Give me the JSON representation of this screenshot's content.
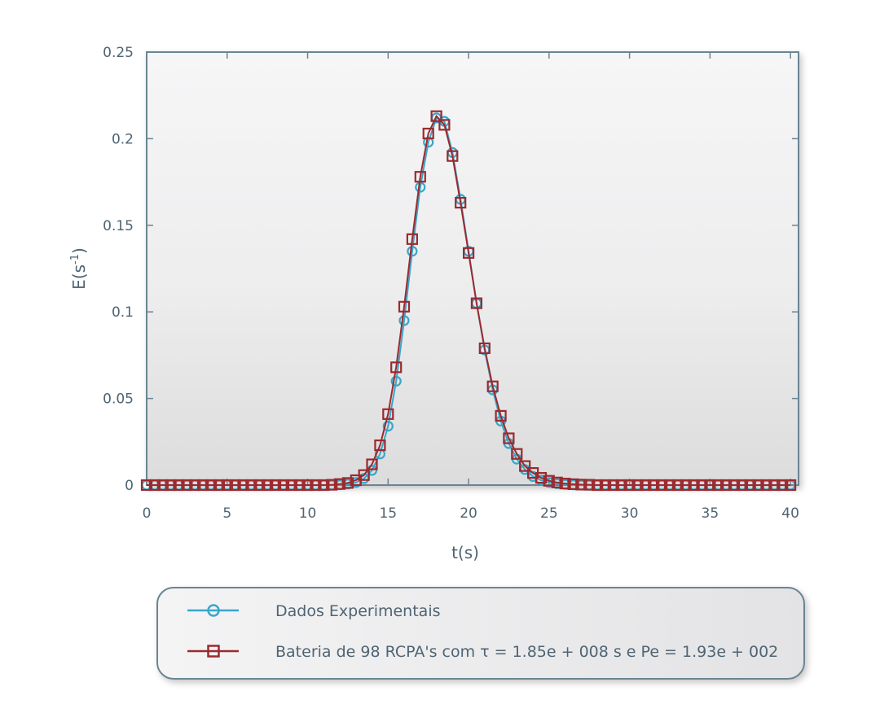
{
  "chart_data": {
    "type": "line",
    "xlabel": "t(s)",
    "ylabel_base": "E(s",
    "ylabel_sup": "-1",
    "ylabel_close": ")",
    "xlim": [
      0,
      40.5
    ],
    "ylim": [
      0,
      0.25
    ],
    "xticks": [
      0,
      5,
      10,
      15,
      20,
      25,
      30,
      35,
      40
    ],
    "yticks": [
      0,
      0.05,
      0.1,
      0.15,
      0.2,
      0.25
    ],
    "ytick_labels": [
      "0",
      "0.05",
      "0.1",
      "0.15",
      "0.2",
      "0.25"
    ],
    "grid": false,
    "legend_position": "bottom",
    "x": [
      0,
      0.5,
      1,
      1.5,
      2,
      2.5,
      3,
      3.5,
      4,
      4.5,
      5,
      5.5,
      6,
      6.5,
      7,
      7.5,
      8,
      8.5,
      9,
      9.5,
      10,
      10.5,
      11,
      11.5,
      12,
      12.5,
      13,
      13.5,
      14,
      14.5,
      15,
      15.5,
      16,
      16.5,
      17,
      17.5,
      18,
      18.5,
      19,
      19.5,
      20,
      20.5,
      21,
      21.5,
      22,
      22.5,
      23,
      23.5,
      24,
      24.5,
      25,
      25.5,
      26,
      26.5,
      27,
      27.5,
      28,
      28.5,
      29,
      29.5,
      30,
      30.5,
      31,
      31.5,
      32,
      32.5,
      33,
      33.5,
      34,
      34.5,
      35,
      35.5,
      36,
      36.5,
      37,
      37.5,
      38,
      38.5,
      39,
      39.5,
      40
    ],
    "series": [
      {
        "name": "Dados Experimentais",
        "color": "#3aa6c9",
        "marker": "circle",
        "values": [
          0,
          0,
          0,
          0,
          0,
          0,
          0,
          0,
          0,
          0,
          0,
          0,
          0,
          0,
          0,
          0,
          0,
          0,
          0,
          0,
          0,
          0,
          0,
          0,
          0.0002,
          0.0006,
          0.0015,
          0.0038,
          0.0085,
          0.018,
          0.034,
          0.06,
          0.095,
          0.135,
          0.172,
          0.198,
          0.212,
          0.21,
          0.192,
          0.165,
          0.135,
          0.105,
          0.078,
          0.055,
          0.037,
          0.024,
          0.015,
          0.009,
          0.005,
          0.0028,
          0.0015,
          0.0008,
          0.0004,
          0.0002,
          0,
          0,
          0,
          0,
          0,
          0,
          0,
          0,
          0,
          0,
          0,
          0,
          0,
          0,
          0,
          0,
          0,
          0,
          0,
          0,
          0,
          0,
          0,
          0,
          0,
          0,
          0
        ]
      },
      {
        "name": "Bateria de 98 RCPA's com τ = 1.85e + 008 s  e  Pe = 1.93e  +  002",
        "color": "#9b2a2f",
        "marker": "square",
        "values": [
          0,
          0,
          0,
          0,
          0,
          0,
          0,
          0,
          0,
          0,
          0,
          0,
          0,
          0,
          0,
          0,
          0,
          0,
          0,
          0,
          0,
          0,
          0,
          0.0002,
          0.0006,
          0.0012,
          0.0028,
          0.0058,
          0.012,
          0.023,
          0.041,
          0.068,
          0.103,
          0.142,
          0.178,
          0.203,
          0.213,
          0.208,
          0.19,
          0.163,
          0.134,
          0.105,
          0.079,
          0.057,
          0.04,
          0.027,
          0.018,
          0.011,
          0.007,
          0.0042,
          0.0025,
          0.0015,
          0.0009,
          0.0005,
          0.0003,
          0.0002,
          0,
          0,
          0,
          0,
          0,
          0,
          0,
          0,
          0,
          0,
          0,
          0,
          0,
          0,
          0,
          0,
          0,
          0,
          0,
          0,
          0,
          0,
          0,
          0,
          0
        ]
      }
    ]
  }
}
